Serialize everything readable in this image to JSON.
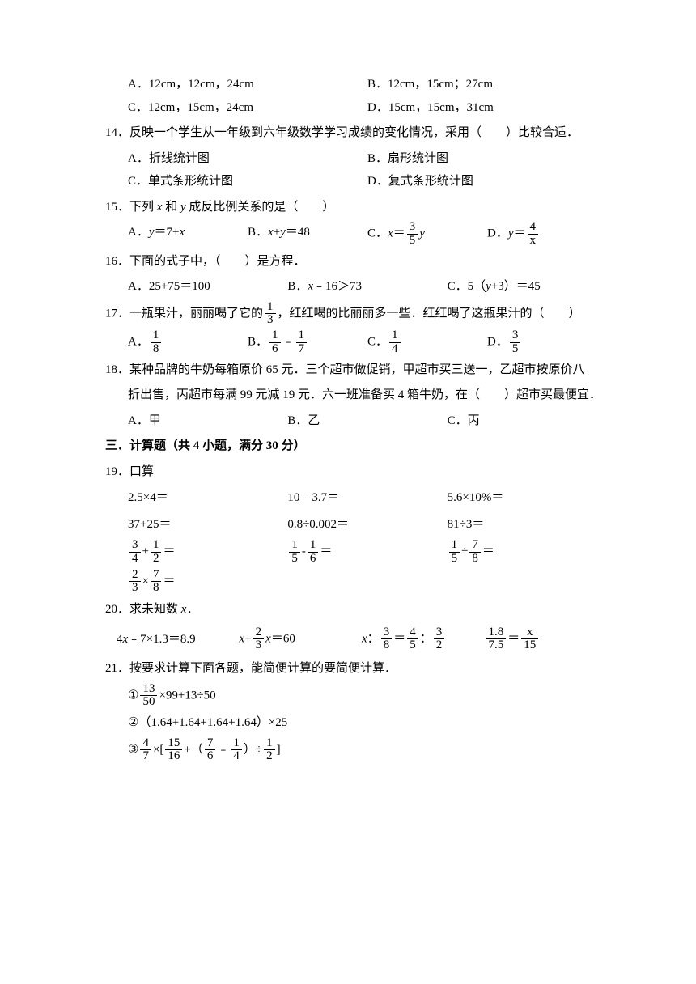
{
  "q13": {
    "A": "A．12cm，12cm，24cm",
    "B": "B．12cm，15cm；27cm",
    "C": "C．12cm，15cm，24cm",
    "D": "D．15cm，15cm，31cm"
  },
  "q14": {
    "stem": "14．反映一个学生从一年级到六年级数学学习成绩的变化情况，采用（　　）比较合适．",
    "A": "A．折线统计图",
    "B": "B．扇形统计图",
    "C": "C．单式条形统计图",
    "D": "D．复式条形统计图"
  },
  "q15": {
    "stem_a": "15．下列 ",
    "x": "x",
    "stem_b": " 和 ",
    "y": "y",
    "stem_c": " 成反比例关系的是（　　）",
    "A_pre": "A．",
    "A_lhs": "y",
    "A_eq": "＝7+",
    "A_rhs": "x",
    "B_pre": "B．",
    "B_lhs": "x",
    "B_mid": "+",
    "B_rhs": "y",
    "B_eq": "＝48",
    "C_pre": "C．",
    "C_lhs": "x",
    "C_eq": "＝",
    "C_num": "3",
    "C_den": "5",
    "C_rhs": "y",
    "D_pre": "D．",
    "D_lhs": "y",
    "D_eq": "＝",
    "D_num": "4",
    "D_den": "x"
  },
  "q16": {
    "stem": "16．下面的式子中，（　　）是方程．",
    "A": "A．25+75＝100",
    "B_pre": "B．",
    "B_x": "x",
    "B_post": "﹣16＞73",
    "C_pre": "C．5（",
    "C_y": "y",
    "C_post": "+3）＝45"
  },
  "q17": {
    "stem_a": "17．一瓶果汁，丽丽喝了它的",
    "s_num": "1",
    "s_den": "3",
    "stem_b": "，红红喝的比丽丽多一些．红红喝了这瓶果汁的（　　）",
    "A_pre": "A．",
    "A_num": "1",
    "A_den": "8",
    "B_pre": "B．",
    "B1_num": "1",
    "B1_den": "6",
    "B_mid": "﹣",
    "B2_num": "1",
    "B2_den": "7",
    "C_pre": "C．",
    "C_num": "1",
    "C_den": "4",
    "D_pre": "D．",
    "D_num": "3",
    "D_den": "5"
  },
  "q18": {
    "line1": "18．某种品牌的牛奶每箱原价 65 元．三个超市做促销，甲超市买三送一，乙超市按原价八",
    "line2": "折出售，丙超市每满 99 元减 19 元．六一班准备买 4 箱牛奶，在（　　）超市买最便宜．",
    "A": "A．甲",
    "B": "B．乙",
    "C": "C．丙"
  },
  "section3": "三．计算题（共 4 小题，满分 30 分）",
  "q19": {
    "stem": "19．口算",
    "r1c1": "2.5×4＝",
    "r1c2": "10﹣3.7＝",
    "r1c3": "5.6×10%＝",
    "r2c1": "37+25＝",
    "r2c2": "0.8÷0.002＝",
    "r2c3": "81÷3＝",
    "r3c1": {
      "a_num": "3",
      "a_den": "4",
      "op": "+",
      "b_num": "1",
      "b_den": "2",
      "eq": "＝"
    },
    "r3c2": {
      "a_num": "1",
      "a_den": "5",
      "op": "-",
      "b_num": "1",
      "b_den": "6",
      "eq": "＝"
    },
    "r3c3": {
      "a_num": "1",
      "a_den": "5",
      "op": "÷",
      "b_num": "7",
      "b_den": "8",
      "eq": "＝"
    },
    "r4c1": {
      "a_num": "2",
      "a_den": "3",
      "op": "×",
      "b_num": "7",
      "b_den": "8",
      "eq": "＝"
    }
  },
  "q20": {
    "stem_a": "20．求未知数 ",
    "x": "x",
    "stem_b": "．",
    "e1_pre": "4",
    "e1_x": "x",
    "e1_post": "﹣7×1.3＝8.9",
    "e2_x1": "x",
    "e2_mid": "+",
    "e2_num": "2",
    "e2_den": "3",
    "e2_x2": "x",
    "e2_eq": "＝60",
    "e3_x": "x",
    "e3_col": "：",
    "e3_a_num": "3",
    "e3_a_den": "8",
    "e3_eq": "＝",
    "e3_b_num": "4",
    "e3_b_den": "5",
    "e3_col2": "：",
    "e3_c_num": "3",
    "e3_c_den": "2",
    "e4_a_num": "1.8",
    "e4_a_den": "7.5",
    "e4_eq": "＝",
    "e4_b_num": "x",
    "e4_b_den": "15"
  },
  "q21": {
    "stem": "21．按要求计算下面各题，能简便计算的要简便计算．",
    "p1_pre": "①",
    "p1_num": "13",
    "p1_den": "50",
    "p1_post": "×99+13÷50",
    "p2": "②（1.64+1.64+1.64+1.64）×25",
    "p3_pre": "③",
    "p3_a_num": "4",
    "p3_a_den": "7",
    "p3_mid1": "×[",
    "p3_b_num": "15",
    "p3_b_den": "16",
    "p3_mid2": "+（",
    "p3_c_num": "7",
    "p3_c_den": "6",
    "p3_mid3": "﹣",
    "p3_d_num": "1",
    "p3_d_den": "4",
    "p3_mid4": "）÷",
    "p3_e_num": "1",
    "p3_e_den": "2",
    "p3_post": "]"
  }
}
